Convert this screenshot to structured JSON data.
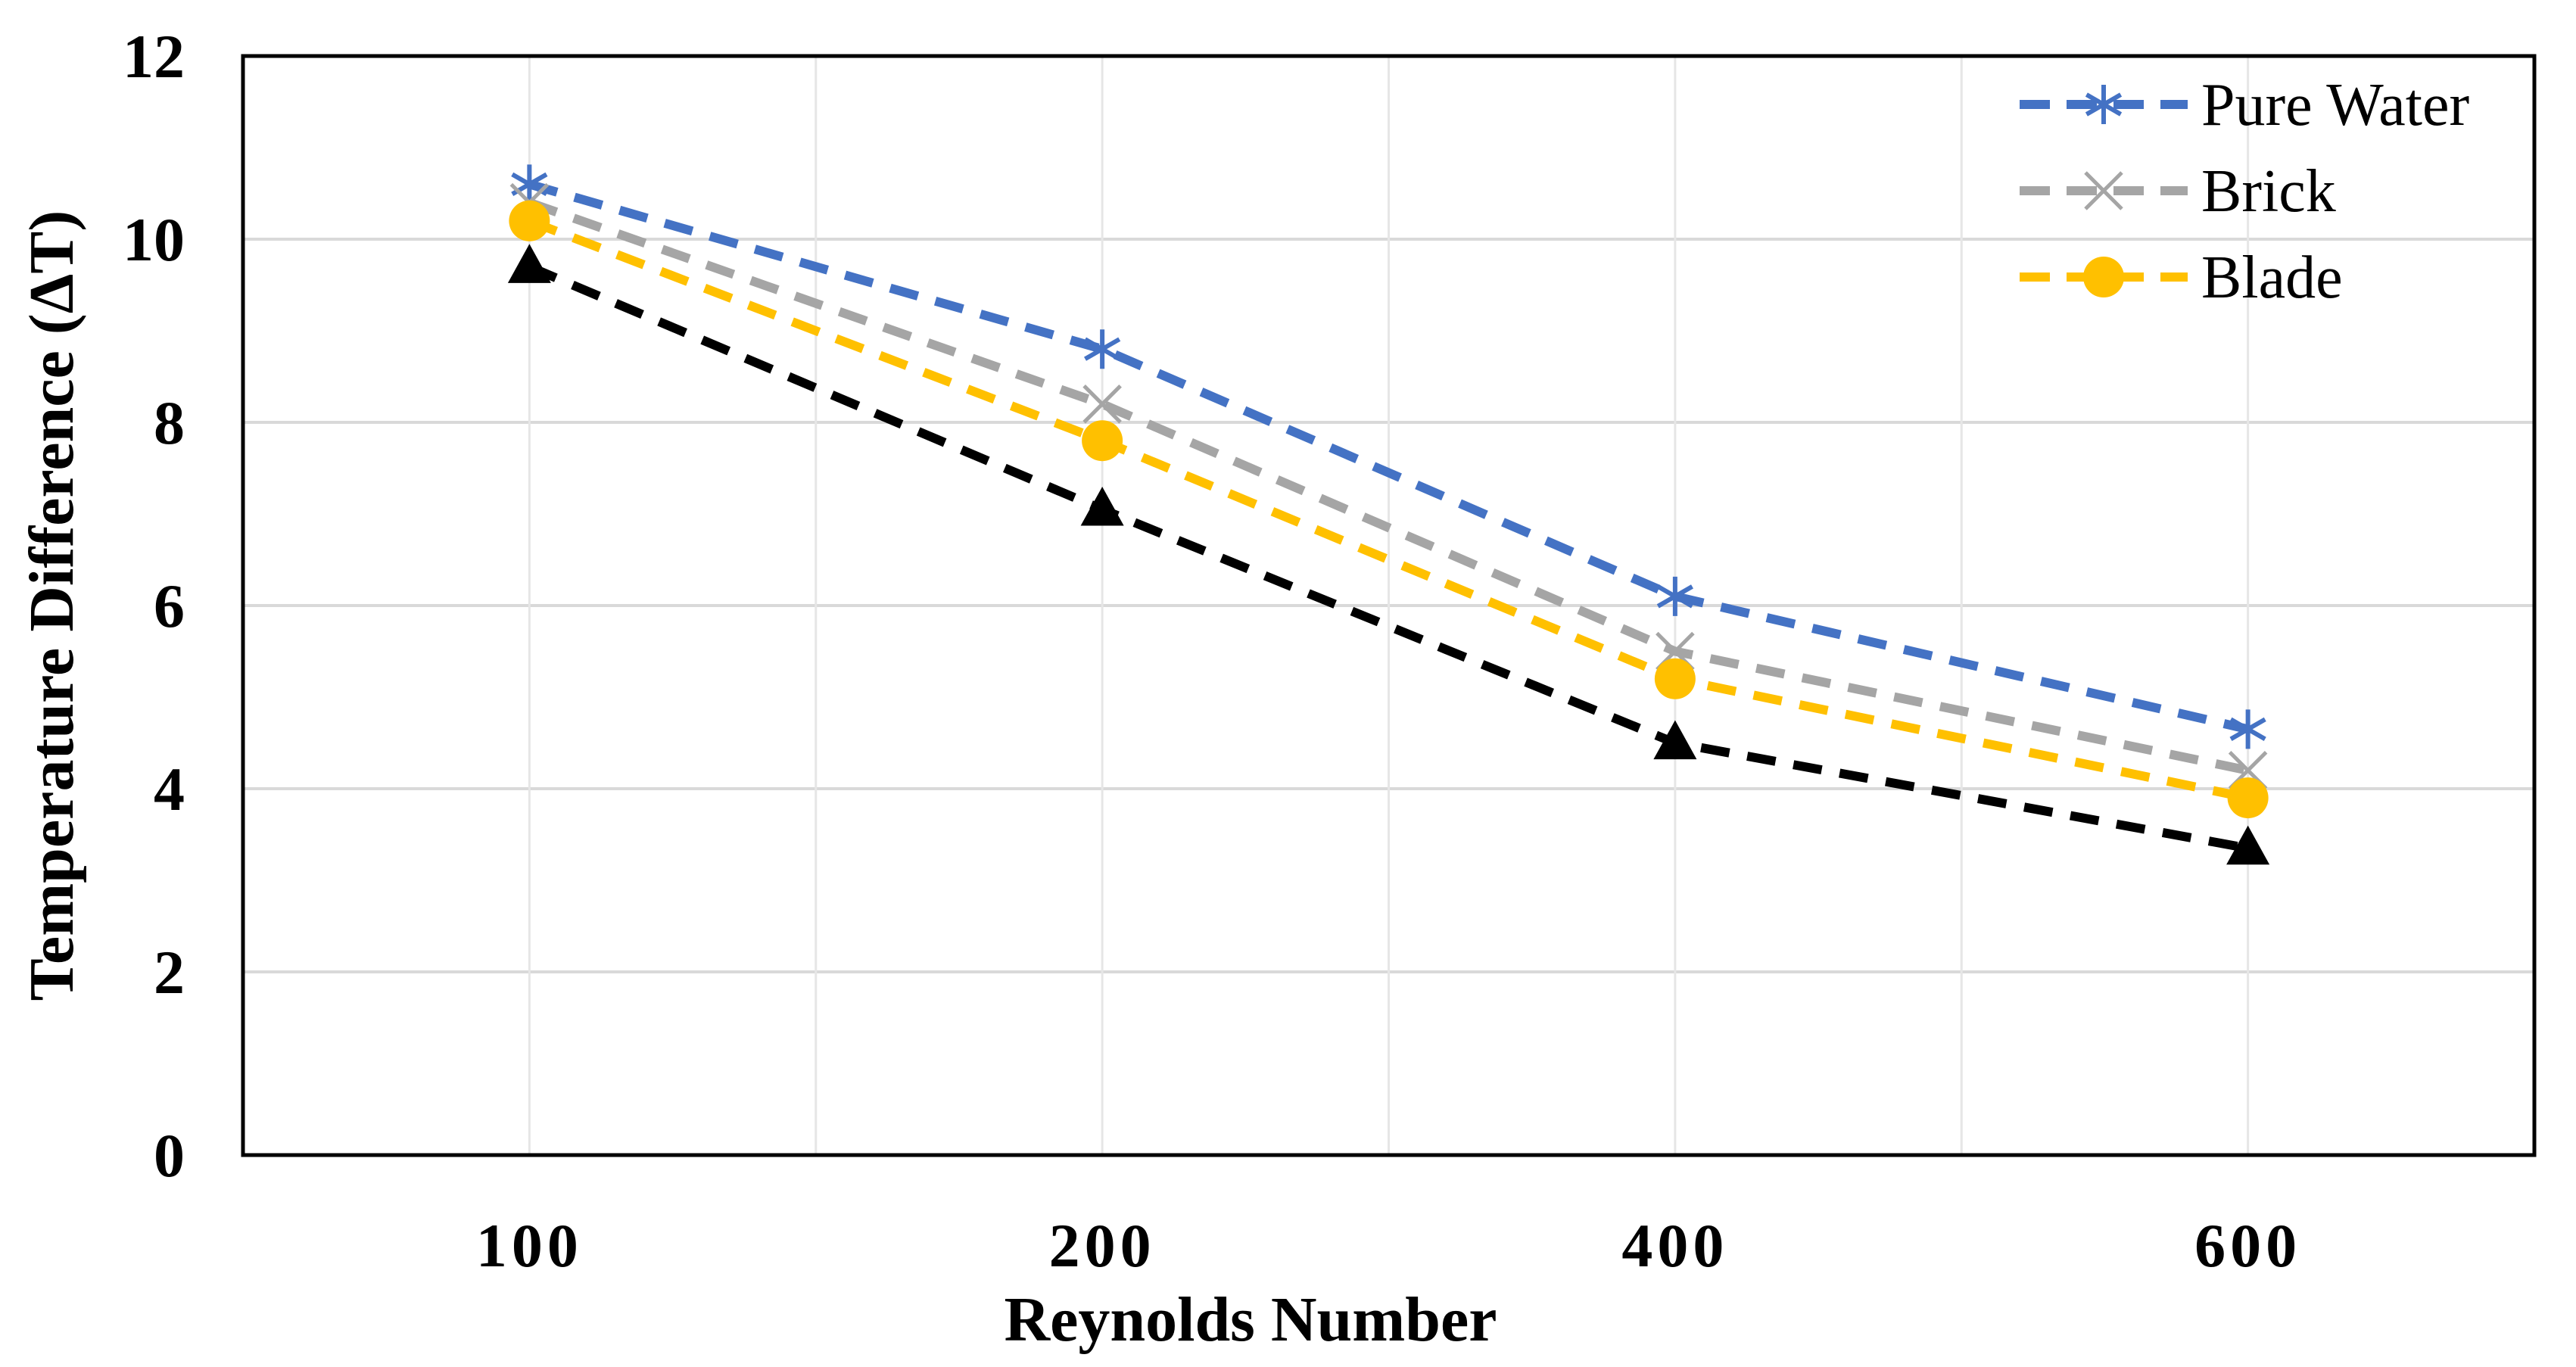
{
  "chart_data": {
    "type": "line",
    "title": "",
    "xlabel": "Reynolds Number",
    "ylabel": "Temperature Difference (ΔT)",
    "categories": [
      "100",
      "200",
      "400",
      "600"
    ],
    "ylim": [
      0,
      12
    ],
    "yticks": [
      "0",
      "2",
      "4",
      "6",
      "8",
      "10",
      "12"
    ],
    "grid": true,
    "legend_position": "top-right",
    "series": [
      {
        "name": "Pure Water",
        "values": [
          10.6,
          8.8,
          6.1,
          4.65
        ],
        "color": "#4472C4",
        "marker": "asterisk",
        "in_legend": true
      },
      {
        "name": "Brick",
        "values": [
          10.4,
          8.2,
          5.5,
          4.2
        ],
        "color": "#A5A5A5",
        "marker": "x",
        "in_legend": true
      },
      {
        "name": "Blade",
        "values": [
          10.2,
          7.8,
          5.2,
          3.9
        ],
        "color": "#FFC000",
        "marker": "circle",
        "in_legend": true
      },
      {
        "name": "",
        "values": [
          9.7,
          7.05,
          4.5,
          3.35
        ],
        "color": "#000000",
        "marker": "triangle",
        "in_legend": false
      }
    ]
  }
}
